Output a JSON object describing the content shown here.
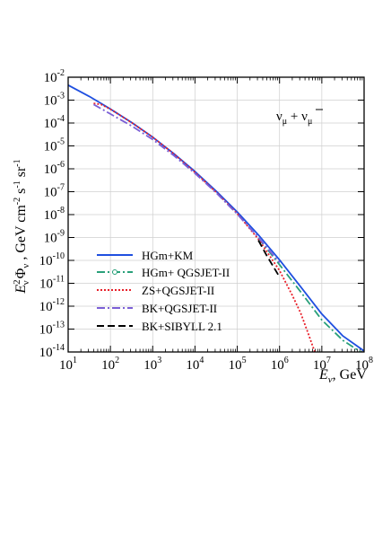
{
  "chart_data": {
    "type": "line",
    "title": "",
    "x_scale": "log",
    "y_scale": "log",
    "xlim": [
      10,
      100000000
    ],
    "ylim": [
      1e-14,
      0.01
    ],
    "grid": true,
    "legend_placement": "bottom-left",
    "annotation": {
      "base": "ν",
      "sub": "μ",
      "middle": " + ",
      "base2": "ν",
      "sub2": "μ",
      "overbar_on": "base2"
    },
    "xlabel": {
      "base": "E",
      "sub": "ν",
      "rest": ", GeV"
    },
    "ylabel": {
      "e_base": "E",
      "e_sup": "2",
      "e_sub": "ν",
      "phi_base": "Φ",
      "phi_sub": "ν",
      "sep": " , ",
      "unit_gev": "GeV cm",
      "unit_gev_sup": "-2",
      "unit_s": " s",
      "unit_s_sup": "-1",
      "unit_sr": " sr",
      "unit_sr_sup": "-1"
    },
    "x_ticks": [
      {
        "value": 10,
        "base": "10",
        "exp": "1"
      },
      {
        "value": 100,
        "base": "10",
        "exp": "2"
      },
      {
        "value": 1000,
        "base": "10",
        "exp": "3"
      },
      {
        "value": 10000,
        "base": "10",
        "exp": "4"
      },
      {
        "value": 100000,
        "base": "10",
        "exp": "5"
      },
      {
        "value": 1000000,
        "base": "10",
        "exp": "6"
      },
      {
        "value": 10000000,
        "base": "10",
        "exp": "7"
      },
      {
        "value": 100000000,
        "base": "10",
        "exp": "8"
      }
    ],
    "y_ticks": [
      {
        "value": 0.01,
        "base": "10",
        "exp": "-2"
      },
      {
        "value": 0.001,
        "base": "10",
        "exp": "-3"
      },
      {
        "value": 0.0001,
        "base": "10",
        "exp": "-4"
      },
      {
        "value": 1e-05,
        "base": "10",
        "exp": "-5"
      },
      {
        "value": 1e-06,
        "base": "10",
        "exp": "-6"
      },
      {
        "value": 1e-07,
        "base": "10",
        "exp": "-7"
      },
      {
        "value": 1e-08,
        "base": "10",
        "exp": "-8"
      },
      {
        "value": 1e-09,
        "base": "10",
        "exp": "-9"
      },
      {
        "value": 1e-10,
        "base": "10",
        "exp": "-10"
      },
      {
        "value": 1e-11,
        "base": "10",
        "exp": "-11"
      },
      {
        "value": 1e-12,
        "base": "10",
        "exp": "-12"
      },
      {
        "value": 1e-13,
        "base": "10",
        "exp": "-13"
      },
      {
        "value": 1e-14,
        "base": "10",
        "exp": "-14"
      }
    ],
    "series": [
      {
        "name": "HGm+KM",
        "color": "#1f4fe0",
        "dash": "solid",
        "marker": "none",
        "x": [
          10,
          31.6,
          100,
          316,
          1000,
          3160,
          10000,
          31600,
          100000,
          316000,
          1000000,
          3160000,
          10000000,
          31600000,
          100000000
        ],
        "y": [
          0.0045,
          0.00145,
          0.00041,
          0.000106,
          2.4e-05,
          4.6e-06,
          7.6e-07,
          1.07e-07,
          1.3e-08,
          1.3e-09,
          1.06e-10,
          7e-12,
          4.5e-13,
          5e-14,
          1.1e-14
        ]
      },
      {
        "name": "HGm+ QGSJET-II",
        "color": "#2aa07a",
        "dash": "dashdot",
        "marker": "circle",
        "x": [
          316000,
          1000000,
          3160000,
          10000000,
          31600000,
          100000000
        ],
        "y": [
          9.6e-10,
          6.5e-11,
          4.2e-12,
          2.5e-13,
          3.2e-14,
          8e-15
        ]
      },
      {
        "name": "ZS+QGSJET-II",
        "color": "#e8202a",
        "dash": "dotted",
        "marker": "none",
        "x": [
          40,
          60,
          100,
          316,
          1000,
          3160,
          10000,
          31600,
          100000,
          316000,
          1000000,
          2000000,
          3160000,
          5000000,
          10000000
        ],
        "y": [
          0.00072,
          0.00065,
          0.0004,
          0.000105,
          2.4e-05,
          4.5e-06,
          7e-07,
          9.5e-08,
          1.1e-08,
          8.5e-10,
          3.6e-11,
          3e-12,
          5e-13,
          5e-14,
          1.3e-15
        ]
      },
      {
        "name": "BK+QGSJET-II",
        "color": "#7b5fd6",
        "dash": "dashdot",
        "marker": "none",
        "x": [
          40,
          100,
          316,
          1000,
          3160,
          10000,
          31600,
          100000,
          316000,
          1000000
        ],
        "y": [
          0.00065,
          0.00025,
          7.5e-05,
          1.9e-05,
          3.8e-06,
          6.3e-07,
          9e-08,
          1.05e-08,
          1e-09,
          8e-11
        ]
      },
      {
        "name": "BK+SIBYLL 2.1",
        "color": "#000000",
        "dash": "dashed",
        "marker": "none",
        "x": [
          316000,
          500000,
          1000000
        ],
        "y": [
          7.5e-10,
          1.6e-10,
          1.9e-11
        ]
      }
    ]
  }
}
